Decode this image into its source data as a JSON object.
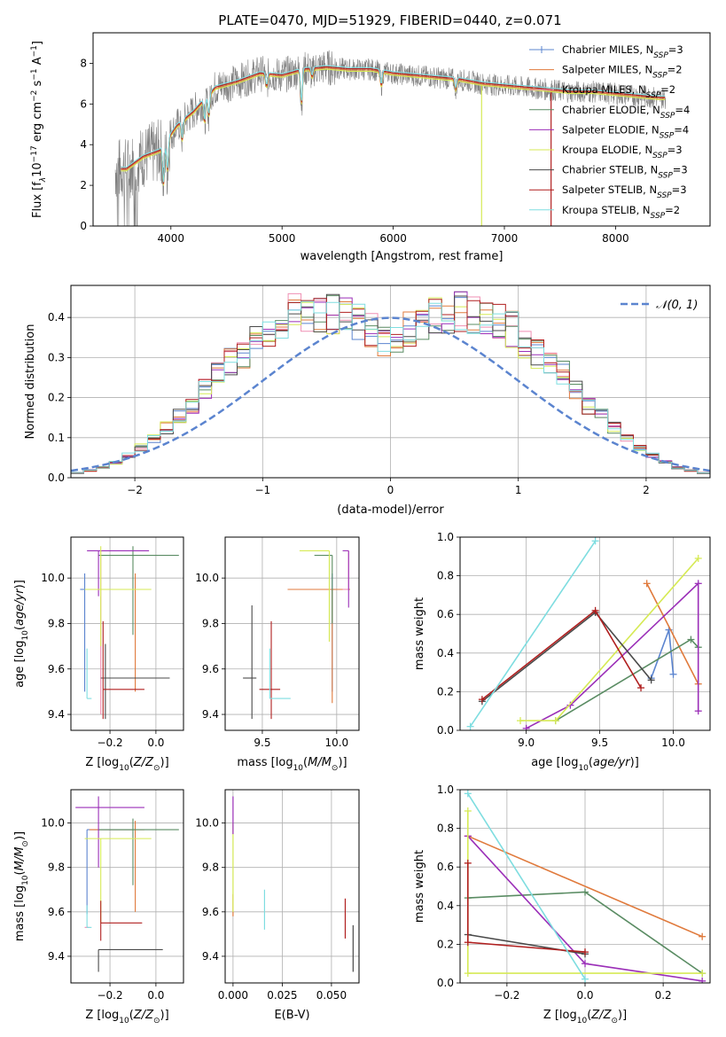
{
  "title": "PLATE=0470, MJD=51929, FIBERID=0440, z=0.071",
  "colors": {
    "Chabrier MILES": "#5b84cf",
    "Salpeter MILES": "#e07a3c",
    "Kroupa MILES": "#ef8fb3",
    "Chabrier ELODIE": "#5a8c63",
    "Salpeter ELODIE": "#9b2fb8",
    "Kroupa ELODIE": "#d6ea55",
    "Chabrier STELIB": "#4a4a4a",
    "Salpeter STELIB": "#b01f1f",
    "Kroupa STELIB": "#7edde0",
    "data": "#808080",
    "gaussian": "#5b84cf"
  },
  "chart_data": [
    {
      "type": "line",
      "title": "PLATE=0470, MJD=51929, FIBERID=0440, z=0.071",
      "xlabel": "wavelength [Angstrom, rest frame]",
      "ylabel_parts": [
        "Flux [f",
        "λ",
        "10",
        "−17",
        " erg cm",
        "−2",
        " s",
        "−1",
        " A",
        "−1",
        "]"
      ],
      "xlim": [
        3300,
        8850
      ],
      "ylim": [
        0,
        9.5
      ],
      "xticks": [
        "4000",
        "5000",
        "6000",
        "7000",
        "8000"
      ],
      "yticks": [
        "0",
        "2",
        "4",
        "6",
        "8"
      ],
      "legend": [
        {
          "name": "Chabrier MILES",
          "n": "3"
        },
        {
          "name": "Salpeter MILES",
          "n": "2"
        },
        {
          "name": "Kroupa MILES",
          "n": "2"
        },
        {
          "name": "Chabrier ELODIE",
          "n": "4"
        },
        {
          "name": "Salpeter ELODIE",
          "n": "4"
        },
        {
          "name": "Kroupa ELODIE",
          "n": "3"
        },
        {
          "name": "Chabrier STELIB",
          "n": "3"
        },
        {
          "name": "Salpeter STELIB",
          "n": "3"
        },
        {
          "name": "Kroupa STELIB",
          "n": "2"
        }
      ],
      "legend_suffix": "SSP",
      "legend_placement": "upper-right",
      "continuum": {
        "x": [
          3600,
          3750,
          3900,
          4050,
          4200,
          4400,
          4600,
          4800,
          5000,
          5200,
          5400,
          5600,
          5800,
          6000,
          6200,
          6400,
          6600,
          6800,
          7000,
          7200,
          7400,
          7600,
          7800,
          8000,
          8200,
          8400
        ],
        "y": [
          2.8,
          3.4,
          3.7,
          4.9,
          5.6,
          6.8,
          7.1,
          7.5,
          7.4,
          7.7,
          7.8,
          7.7,
          7.7,
          7.5,
          7.4,
          7.3,
          7.2,
          7.0,
          6.9,
          6.8,
          6.7,
          6.6,
          6.6,
          6.5,
          6.4,
          6.3
        ]
      },
      "features": [
        {
          "x": 3934,
          "depth": 1.9
        },
        {
          "x": 3969,
          "depth": 1.5
        },
        {
          "x": 4102,
          "depth": 0.9
        },
        {
          "x": 4304,
          "depth": 1.1
        },
        {
          "x": 4341,
          "depth": 1.0
        },
        {
          "x": 4861,
          "depth": 0.6
        },
        {
          "x": 5175,
          "depth": 1.6
        },
        {
          "x": 5270,
          "depth": 0.4
        },
        {
          "x": 5893,
          "depth": 0.7
        },
        {
          "x": 6563,
          "depth": 0.5
        },
        {
          "x": 8498,
          "depth": 0.8
        },
        {
          "x": 8542,
          "depth": 0.9
        }
      ],
      "data_gaps": [
        {
          "x": 6795,
          "bottom": 0
        },
        {
          "x": 7420,
          "bottom": 0
        }
      ],
      "data_range": [
        3500,
        8450
      ]
    },
    {
      "type": "step",
      "xlabel": "(data-model)/error",
      "ylabel": "Normed distribution",
      "xlim": [
        -2.5,
        2.5
      ],
      "ylim": [
        0,
        0.48
      ],
      "xticks": [
        "−2",
        "−1",
        "0",
        "1",
        "2"
      ],
      "yticks": [
        "0.0",
        "0.1",
        "0.2",
        "0.3",
        "0.4"
      ],
      "bin_width": 0.1,
      "bin_start": -2.5,
      "series_heights": [
        0.012,
        0.015,
        0.018,
        0.02,
        0.025,
        0.03,
        0.038,
        0.045,
        0.055,
        0.06,
        0.075,
        0.085,
        0.095,
        0.11,
        0.125,
        0.14,
        0.155,
        0.17,
        0.18,
        0.2,
        0.22,
        0.23,
        0.26,
        0.28,
        0.29,
        0.3,
        0.31,
        0.32,
        0.34,
        0.36,
        0.37,
        0.385,
        0.39,
        0.395,
        0.41,
        0.405,
        0.41,
        0.42,
        0.415,
        0.42,
        0.41,
        0.4,
        0.405,
        0.395,
        0.39,
        0.38,
        0.37,
        0.36,
        0.34,
        0.33
      ],
      "gaussian_label": "𝒩(0, 1)",
      "legend_placement": "upper-right",
      "grid": true
    },
    {
      "type": "errorbar",
      "xlabel": "Z [log10(Z/Z⊙)]",
      "ylabel": "age  [log10(age/yr)]",
      "xlim": [
        -0.37,
        0.12
      ],
      "ylim": [
        9.33,
        10.18
      ],
      "xticks": [
        "−0.2",
        "0.0"
      ],
      "yticks": [
        "9.4",
        "9.6",
        "9.8",
        "10.0"
      ],
      "grid": true,
      "points": [
        {
          "series": "Chabrier MILES",
          "x": -0.31,
          "y": 9.95,
          "xerr": [
            0.02,
            0.0
          ],
          "yerr": [
            0.45,
            0.07
          ]
        },
        {
          "series": "Salpeter MILES",
          "x": -0.09,
          "y": 9.95,
          "xerr": [
            0.2,
            0.06
          ],
          "yerr": [
            0.45,
            0.07
          ]
        },
        {
          "series": "Kroupa MILES",
          "x": -0.24,
          "y": 9.95,
          "xerr": [
            0.07,
            0.01
          ],
          "yerr": [
            0.55,
            0.17
          ]
        },
        {
          "series": "Chabrier ELODIE",
          "x": -0.1,
          "y": 10.1,
          "xerr": [
            0.15,
            0.2
          ],
          "yerr": [
            0.35,
            0.04
          ]
        },
        {
          "series": "Salpeter ELODIE",
          "x": -0.25,
          "y": 10.12,
          "xerr": [
            0.05,
            0.22
          ],
          "yerr": [
            0.2,
            0.0
          ]
        },
        {
          "series": "Kroupa ELODIE",
          "x": -0.24,
          "y": 9.95,
          "xerr": [
            0.07,
            0.22
          ],
          "yerr": [
            0.25,
            0.19
          ]
        },
        {
          "series": "Chabrier STELIB",
          "x": -0.22,
          "y": 9.56,
          "xerr": [
            0.02,
            0.28
          ],
          "yerr": [
            0.18,
            0.15
          ]
        },
        {
          "series": "Salpeter STELIB",
          "x": -0.23,
          "y": 9.51,
          "xerr": [
            0.0,
            0.18
          ],
          "yerr": [
            0.13,
            0.3
          ]
        },
        {
          "series": "Kroupa STELIB",
          "x": -0.3,
          "y": 9.47,
          "xerr": [
            0.0,
            0.02
          ],
          "yerr": [
            0.0,
            0.22
          ]
        }
      ]
    },
    {
      "type": "errorbar",
      "xlabel": "mass [log10(M/M⊙)]",
      "ylabel": "",
      "xlim": [
        9.25,
        10.15
      ],
      "ylim": [
        9.33,
        10.18
      ],
      "xticks": [
        "9.5",
        "10.0"
      ],
      "yticks": [
        "9.4",
        "9.6",
        "9.8",
        "10.0"
      ],
      "grid": true,
      "points": [
        {
          "series": "Chabrier MILES",
          "x": 9.97,
          "y": 9.95,
          "xerr": [
            0.0,
            0.02
          ],
          "yerr": [
            0.45,
            0.07
          ]
        },
        {
          "series": "Salpeter MILES",
          "x": 9.97,
          "y": 9.95,
          "xerr": [
            0.3,
            0.12
          ],
          "yerr": [
            0.5,
            0.0
          ]
        },
        {
          "series": "Kroupa MILES",
          "x": 10.08,
          "y": 9.95,
          "xerr": [
            0.04,
            0.0
          ],
          "yerr": [
            0.0,
            0.17
          ]
        },
        {
          "series": "Chabrier ELODIE",
          "x": 9.97,
          "y": 10.1,
          "xerr": [
            0.12,
            0.0
          ],
          "yerr": [
            0.3,
            0.0
          ]
        },
        {
          "series": "Salpeter ELODIE",
          "x": 10.08,
          "y": 10.12,
          "xerr": [
            0.04,
            0.0
          ],
          "yerr": [
            0.25,
            0.0
          ]
        },
        {
          "series": "Kroupa ELODIE",
          "x": 9.95,
          "y": 10.12,
          "xerr": [
            0.2,
            0.0
          ],
          "yerr": [
            0.4,
            0.0
          ]
        },
        {
          "series": "Chabrier STELIB",
          "x": 9.43,
          "y": 9.56,
          "xerr": [
            0.06,
            0.03
          ],
          "yerr": [
            0.18,
            0.32
          ]
        },
        {
          "series": "Salpeter STELIB",
          "x": 9.56,
          "y": 9.51,
          "xerr": [
            0.08,
            0.06
          ],
          "yerr": [
            0.13,
            0.3
          ]
        },
        {
          "series": "Kroupa STELIB",
          "x": 9.55,
          "y": 9.47,
          "xerr": [
            0.0,
            0.14
          ],
          "yerr": [
            0.0,
            0.22
          ]
        }
      ]
    },
    {
      "type": "line",
      "xlabel": "age  [log10(age/yr)]",
      "ylabel": "mass weight",
      "xlim": [
        8.55,
        10.25
      ],
      "ylim": [
        0,
        1.0
      ],
      "xticks": [
        "9.0",
        "9.5",
        "10.0"
      ],
      "yticks": [
        "0.0",
        "0.2",
        "0.4",
        "0.6",
        "0.8",
        "1.0"
      ],
      "grid": true,
      "series": [
        {
          "name": "Chabrier MILES",
          "x": [
            9.85,
            9.97,
            10.0
          ],
          "y": [
            0.27,
            0.52,
            0.29
          ]
        },
        {
          "name": "Salpeter MILES",
          "x": [
            9.82,
            10.17
          ],
          "y": [
            0.76,
            0.24
          ]
        },
        {
          "name": "Chabrier ELODIE",
          "x": [
            9.2,
            10.12,
            10.17
          ],
          "y": [
            0.05,
            0.47,
            0.43
          ]
        },
        {
          "name": "Salpeter ELODIE",
          "x": [
            9.0,
            9.3,
            10.17,
            10.17
          ],
          "y": [
            0.01,
            0.13,
            0.76,
            0.1
          ]
        },
        {
          "name": "Kroupa ELODIE",
          "x": [
            8.96,
            9.2,
            10.17
          ],
          "y": [
            0.05,
            0.05,
            0.89
          ]
        },
        {
          "name": "Chabrier STELIB",
          "x": [
            8.7,
            9.47,
            9.85
          ],
          "y": [
            0.15,
            0.61,
            0.26
          ]
        },
        {
          "name": "Salpeter STELIB",
          "x": [
            8.7,
            9.47,
            9.78
          ],
          "y": [
            0.16,
            0.62,
            0.22
          ]
        },
        {
          "name": "Kroupa STELIB",
          "x": [
            8.62,
            9.47
          ],
          "y": [
            0.02,
            0.98
          ]
        }
      ]
    },
    {
      "type": "errorbar",
      "xlabel": "Z [log10(Z/Z⊙)]",
      "ylabel": "mass [log10(M/M⊙)]",
      "xlim": [
        -0.37,
        0.12
      ],
      "ylim": [
        9.28,
        10.15
      ],
      "xticks": [
        "−0.2",
        "0.0"
      ],
      "yticks": [
        "9.4",
        "9.6",
        "9.8",
        "10.0"
      ],
      "grid": true,
      "points": [
        {
          "series": "Chabrier MILES",
          "x": -0.3,
          "y": 9.97,
          "xerr": [
            0.0,
            0.2
          ],
          "yerr": [
            0.38,
            0.0
          ]
        },
        {
          "series": "Salpeter MILES",
          "x": -0.09,
          "y": 9.97,
          "xerr": [
            0.2,
            0.04
          ],
          "yerr": [
            0.37,
            0.04
          ]
        },
        {
          "series": "Kroupa MILES",
          "x": -0.31,
          "y": 9.53,
          "xerr": [
            0.0,
            0.02
          ],
          "yerr": [
            0.0,
            0.0
          ]
        },
        {
          "series": "Chabrier ELODIE",
          "x": -0.1,
          "y": 9.97,
          "xerr": [
            0.15,
            0.2
          ],
          "yerr": [
            0.25,
            0.05
          ]
        },
        {
          "series": "Salpeter ELODIE",
          "x": -0.25,
          "y": 10.07,
          "xerr": [
            0.1,
            0.2
          ],
          "yerr": [
            0.27,
            0.05
          ]
        },
        {
          "series": "Kroupa ELODIE",
          "x": -0.24,
          "y": 9.93,
          "xerr": [
            0.07,
            0.22
          ],
          "yerr": [
            0.38,
            0.0
          ]
        },
        {
          "series": "Chabrier STELIB",
          "x": -0.25,
          "y": 9.43,
          "xerr": [
            0.0,
            0.28
          ],
          "yerr": [
            0.1,
            0.0
          ]
        },
        {
          "series": "Salpeter STELIB",
          "x": -0.24,
          "y": 9.55,
          "xerr": [
            0.0,
            0.18
          ],
          "yerr": [
            0.08,
            0.1
          ]
        },
        {
          "series": "Kroupa STELIB",
          "x": -0.3,
          "y": 9.53,
          "xerr": [
            0.0,
            0.02
          ],
          "yerr": [
            0.0,
            0.1
          ]
        }
      ]
    },
    {
      "type": "errorbar",
      "xlabel": "E(B-V)",
      "ylabel": "",
      "xlim": [
        -0.004,
        0.064
      ],
      "ylim": [
        9.28,
        10.15
      ],
      "xticks": [
        "0.000",
        "0.025",
        "0.050"
      ],
      "yticks": [
        "9.4",
        "9.6",
        "9.8",
        "10.0"
      ],
      "grid": true,
      "points": [
        {
          "series": "Salpeter MILES",
          "x": 0.0,
          "y": 9.63,
          "xerr": [
            0.0,
            0.0
          ],
          "yerr": [
            0.05,
            0.05
          ]
        },
        {
          "series": "Kroupa ELODIE",
          "x": 0.0,
          "y": 9.95,
          "xerr": [
            0.0,
            0.0
          ],
          "yerr": [
            0.35,
            0.05
          ]
        },
        {
          "series": "Salpeter ELODIE",
          "x": 0.0,
          "y": 10.05,
          "xerr": [
            0.0,
            0.0
          ],
          "yerr": [
            0.1,
            0.07
          ]
        },
        {
          "series": "Kroupa STELIB",
          "x": 0.016,
          "y": 9.6,
          "xerr": [
            0.0,
            0.0
          ],
          "yerr": [
            0.08,
            0.1
          ]
        },
        {
          "series": "Salpeter STELIB",
          "x": 0.057,
          "y": 9.57,
          "xerr": [
            0.0,
            0.0
          ],
          "yerr": [
            0.09,
            0.09
          ]
        },
        {
          "series": "Chabrier STELIB",
          "x": 0.061,
          "y": 9.43,
          "xerr": [
            0.0,
            0.0
          ],
          "yerr": [
            0.1,
            0.11
          ]
        }
      ]
    },
    {
      "type": "line",
      "xlabel": "Z [log10(Z/Z⊙)]",
      "ylabel": "mass weight",
      "xlim": [
        -0.32,
        0.32
      ],
      "ylim": [
        0,
        1.0
      ],
      "xticks": [
        "−0.2",
        "0.0",
        "0.2"
      ],
      "yticks": [
        "0.0",
        "0.2",
        "0.4",
        "0.6",
        "0.8",
        "1.0"
      ],
      "grid": true,
      "series": [
        {
          "name": "Salpeter MILES",
          "x": [
            -0.3,
            0.3
          ],
          "y": [
            0.76,
            0.24
          ]
        },
        {
          "name": "Chabrier ELODIE",
          "x": [
            -0.3,
            0.0,
            0.3
          ],
          "y": [
            0.44,
            0.47,
            0.05
          ]
        },
        {
          "name": "Salpeter ELODIE",
          "x": [
            -0.3,
            0.0,
            0.3
          ],
          "y": [
            0.76,
            0.1,
            0.01
          ]
        },
        {
          "name": "Kroupa ELODIE",
          "x": [
            -0.3,
            -0.3,
            0.3
          ],
          "y": [
            0.89,
            0.05,
            0.05
          ]
        },
        {
          "name": "Chabrier STELIB",
          "x": [
            -0.3,
            0.0
          ],
          "y": [
            0.25,
            0.15
          ]
        },
        {
          "name": "Salpeter STELIB",
          "x": [
            -0.3,
            -0.3,
            0.0
          ],
          "y": [
            0.62,
            0.21,
            0.16
          ]
        },
        {
          "name": "Kroupa STELIB",
          "x": [
            -0.3,
            0.0
          ],
          "y": [
            0.98,
            0.02
          ]
        }
      ]
    }
  ]
}
